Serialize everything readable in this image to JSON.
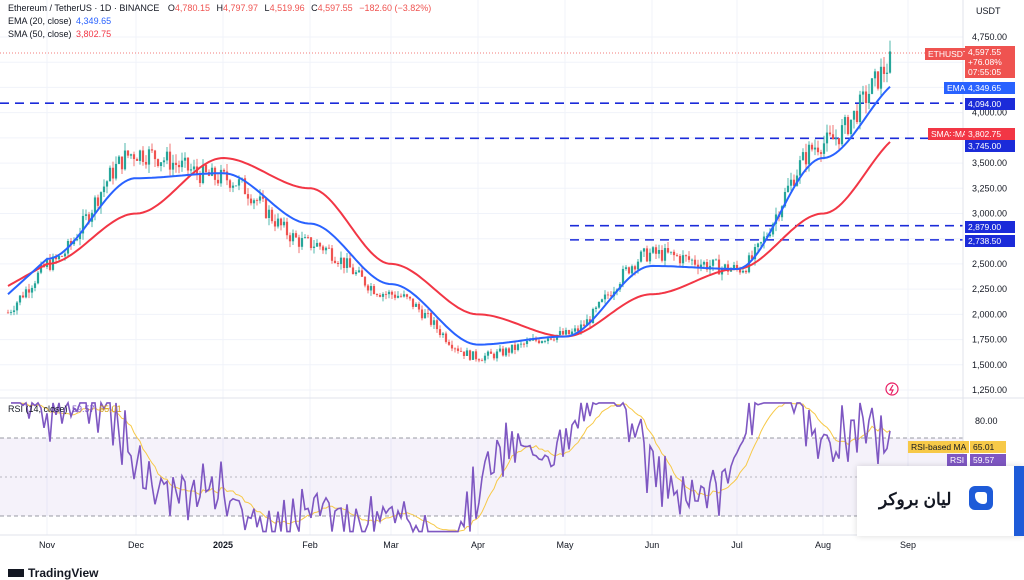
{
  "header": {
    "symbol": "Ethereum / TetherUS · 1D · BINANCE",
    "o_label": "O",
    "o": "4,780.15",
    "h_label": "H",
    "h": "4,797.97",
    "l_label": "L",
    "l": "4,519.96",
    "c_label": "C",
    "c": "4,597.55",
    "change": "−182.60 (−3.82%)",
    "ema_label": "EMA (20, close)",
    "ema_value": "4,349.65",
    "sma_label": "SMA (50, close)",
    "sma_value": "3,802.75",
    "rsi_label": "RSI (14, close)",
    "rsi_value": "59.57",
    "rsi_ma_value": "65.01"
  },
  "price_axis": {
    "currency": "USDT",
    "ticks": [
      "4,750.00",
      "4,500.00",
      "4,250.00",
      "4,000.00",
      "3,750.00",
      "3,500.00",
      "3,250.00",
      "3,000.00",
      "2,750.00",
      "2,500.00",
      "2,250.00",
      "2,000.00",
      "1,750.00",
      "1,500.00",
      "1,250.00"
    ]
  },
  "rsi_axis": {
    "ticks": [
      "80.00"
    ]
  },
  "time_axis": {
    "labels": [
      "Nov",
      "Dec",
      "2025",
      "Feb",
      "Mar",
      "Apr",
      "May",
      "Jun",
      "Jul",
      "Aug",
      "Sep"
    ]
  },
  "tags": {
    "ethusdt_label": "ETHUSDT",
    "ethusdt_price": "4,597.55",
    "ethusdt_change": "+76.08%",
    "ethusdt_timer": "07:55:05",
    "ema_label": "EMA",
    "ema_price": "4,349.65",
    "level_4094": "4,094.00",
    "sma_label": "SMA∷MA",
    "sma_price": "3,802.75",
    "level_3745": "3,745.00",
    "level_2879": "2,879.00",
    "level_2738": "2,738.50",
    "rsi_ma_label": "RSI-based MA",
    "rsi_ma_price": "65.01",
    "rsi_label": "RSI",
    "rsi_price": "59.57"
  },
  "watermark": {
    "tv": "TradingView",
    "broker": "ليان بروكر"
  },
  "colors": {
    "up": "#26a69a",
    "down": "#ef5350",
    "ema": "#2962ff",
    "sma": "#f23645",
    "level": "#1b2bd9",
    "rsi": "#7e57c2",
    "rsi_ma": "#f7c948"
  },
  "chart_data": {
    "type": "line",
    "title": "Ethereum / TetherUS · 1D · BINANCE",
    "x": [
      "Nov",
      "Dec",
      "2025",
      "Feb",
      "Mar",
      "Apr",
      "May",
      "Jun",
      "Jul",
      "Aug",
      "Sep"
    ],
    "series": [
      {
        "name": "ETHUSDT",
        "values": [
          2500,
          3600,
          3350,
          2700,
          2200,
          1580,
          1800,
          2600,
          2450,
          3700,
          4597.55
        ]
      },
      {
        "name": "EMA (20, close)",
        "values": [
          2550,
          3350,
          3400,
          2900,
          2300,
          1700,
          1780,
          2480,
          2450,
          3550,
          4349.65
        ]
      },
      {
        "name": "SMA (50, close)",
        "values": [
          2500,
          3000,
          3550,
          3250,
          2500,
          2000,
          1780,
          2200,
          2450,
          3000,
          3802.75
        ]
      }
    ],
    "levels": [
      4094,
      3745,
      2879,
      2738.5
    ],
    "ylim": [
      1150,
      4950
    ],
    "rsi": {
      "name": "RSI (14, close)",
      "last": 59.57,
      "ma_last": 65.01,
      "upper": 70,
      "lower": 30
    }
  }
}
